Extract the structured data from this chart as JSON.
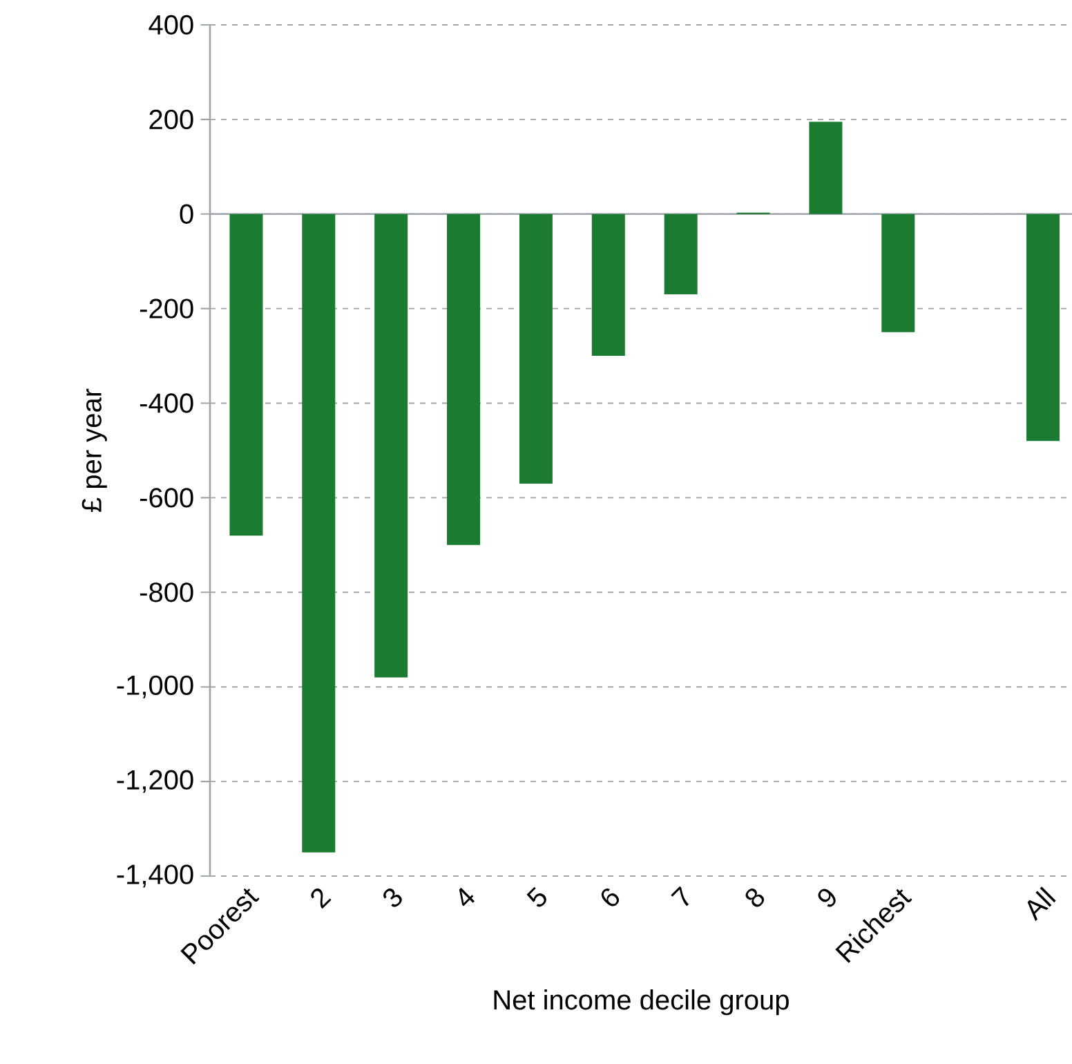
{
  "chart_data": {
    "type": "bar",
    "xlabel": "Net income decile group",
    "ylabel": "£ per year",
    "categories": [
      "Poorest",
      "2",
      "3",
      "4",
      "5",
      "6",
      "7",
      "8",
      "9",
      "Richest",
      null,
      "All"
    ],
    "values": [
      -680,
      -1350,
      -980,
      -700,
      -570,
      -300,
      -170,
      3,
      195,
      -250,
      null,
      -480
    ],
    "color": "#1b7b31",
    "ylim": [
      -1400,
      400
    ],
    "yticks": [
      {
        "value": -1400,
        "label": "-1,400"
      },
      {
        "value": -1200,
        "label": "-1,200"
      },
      {
        "value": -1000,
        "label": "-1,000"
      },
      -800,
      -600,
      -400,
      -200,
      0,
      200,
      400
    ],
    "grid": "y"
  }
}
